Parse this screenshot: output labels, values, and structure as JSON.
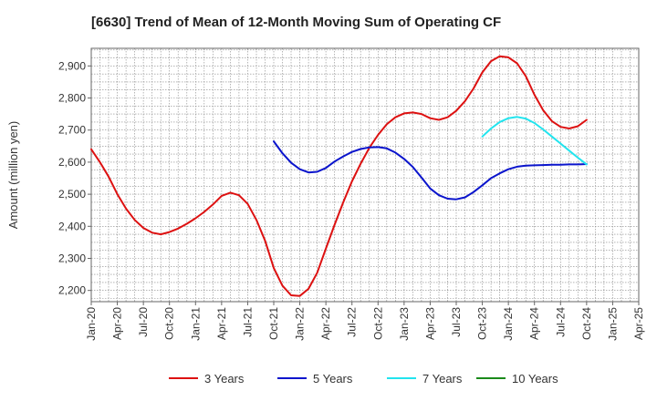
{
  "chart_data": {
    "type": "line",
    "title": "[6630]  Trend of Mean of 12-Month Moving Sum of Operating CF",
    "xlabel": "",
    "ylabel": "Amount (million yen)",
    "ylim": [
      2165,
      2955
    ],
    "yticks": [
      2200,
      2300,
      2400,
      2500,
      2600,
      2700,
      2800,
      2900
    ],
    "ytick_labels": [
      "2,200",
      "2,300",
      "2,400",
      "2,500",
      "2,600",
      "2,700",
      "2,800",
      "2,900"
    ],
    "xlim": [
      0,
      63
    ],
    "xticks": [
      0,
      3,
      6,
      9,
      12,
      15,
      18,
      21,
      24,
      27,
      30,
      33,
      36,
      39,
      42,
      45,
      48,
      51,
      54,
      57,
      60,
      63
    ],
    "xtick_labels": [
      "Jan-20",
      "Apr-20",
      "Jul-20",
      "Oct-20",
      "Jan-21",
      "Apr-21",
      "Jul-21",
      "Oct-21",
      "Jan-22",
      "Apr-22",
      "Jul-22",
      "Oct-22",
      "Jan-23",
      "Apr-23",
      "Jul-23",
      "Oct-23",
      "Jan-24",
      "Apr-24",
      "Jul-24",
      "Oct-24",
      "Jan-25",
      "Apr-25"
    ],
    "grid": true,
    "legend_position": "bottom",
    "series": [
      {
        "name": "3 Years",
        "color": "#dd1111",
        "x_start": 0,
        "values": [
          2640,
          2600,
          2555,
          2500,
          2455,
          2420,
          2395,
          2380,
          2375,
          2382,
          2393,
          2408,
          2425,
          2445,
          2468,
          2495,
          2505,
          2497,
          2470,
          2420,
          2355,
          2270,
          2215,
          2185,
          2183,
          2205,
          2255,
          2330,
          2405,
          2475,
          2540,
          2595,
          2645,
          2685,
          2718,
          2740,
          2752,
          2755,
          2750,
          2737,
          2732,
          2740,
          2760,
          2790,
          2830,
          2880,
          2915,
          2930,
          2927,
          2908,
          2868,
          2810,
          2762,
          2728,
          2710,
          2705,
          2712,
          2732
        ]
      },
      {
        "name": "5 Years",
        "color": "#0a14cc",
        "x_start": 21,
        "values": [
          2665,
          2628,
          2598,
          2578,
          2568,
          2570,
          2582,
          2602,
          2618,
          2632,
          2641,
          2646,
          2647,
          2643,
          2630,
          2610,
          2585,
          2552,
          2518,
          2497,
          2486,
          2484,
          2490,
          2507,
          2528,
          2550,
          2565,
          2578,
          2586,
          2589,
          2590,
          2591,
          2592,
          2592,
          2593,
          2593,
          2594
        ]
      },
      {
        "name": "7 Years",
        "color": "#22e4ee",
        "x_start": 45,
        "values": [
          2680,
          2705,
          2725,
          2737,
          2741,
          2736,
          2722,
          2702,
          2680,
          2658,
          2636,
          2614,
          2593
        ]
      },
      {
        "name": "10 Years",
        "color": "#1a8a1a",
        "x_start": 45,
        "values": []
      }
    ]
  }
}
